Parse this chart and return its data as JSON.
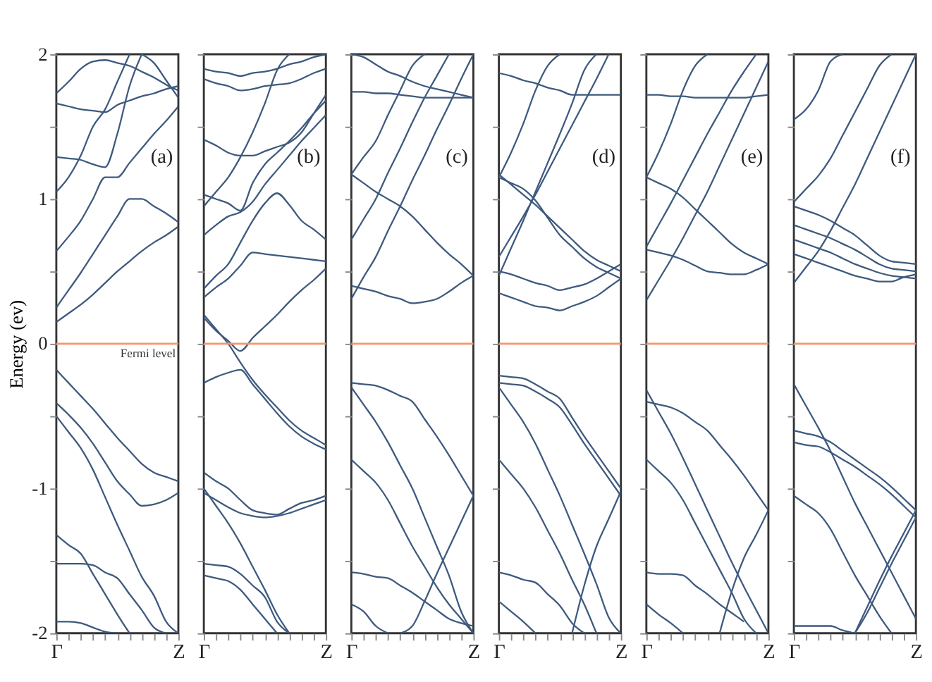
{
  "chart_data": [
    {
      "type": "line",
      "ylabel": "Energy (ev)",
      "categories": [
        "Γ",
        null,
        null,
        null,
        null,
        null,
        null,
        null,
        null,
        null,
        "Z"
      ],
      "ylim": [
        -2,
        2
      ],
      "yticks": [
        -2,
        {
          "value": -1.5,
          "label": null
        },
        -1,
        {
          "value": -0.5,
          "label": null
        },
        0,
        {
          "value": 0.5,
          "label": null
        },
        1,
        {
          "value": 1.5,
          "label": null
        },
        2
      ],
      "ref_lines": [
        {
          "axis": "y",
          "value": 0,
          "label": "Fermi level",
          "color": "#f5956a"
        }
      ],
      "annotations": [
        "(a)"
      ],
      "series": [
        {
          "color": "#3e5a7e",
          "values": [
            0.15,
            0.21,
            0.27,
            0.34,
            0.42,
            0.5,
            0.57,
            0.64,
            0.7,
            0.75,
            0.81
          ]
        },
        {
          "color": "#3e5a7e",
          "values": [
            0.25,
            0.37,
            0.49,
            0.62,
            0.75,
            0.88,
            1.0,
            1.0,
            0.95,
            0.9,
            0.84
          ]
        },
        {
          "color": "#3e5a7e",
          "values": [
            0.64,
            0.74,
            0.85,
            1,
            1.15,
            1.15,
            1.25,
            1.35,
            1.45,
            1.54,
            1.64
          ]
        },
        {
          "color": "#3e5a7e",
          "values": [
            1.05,
            1.15,
            1.3,
            1.5,
            1.62,
            1.81,
            2,
            null,
            null,
            null,
            null
          ]
        },
        {
          "color": "#3e5a7e",
          "values": [
            1.29,
            1.28,
            1.27,
            1.24,
            1.22,
            1.45,
            1.78,
            2,
            null,
            null,
            null
          ]
        },
        {
          "color": "#3e5a7e",
          "values": [
            1.73,
            1.81,
            1.9,
            1.95,
            1.96,
            1.94,
            1.92,
            1.88,
            1.84,
            1.79,
            1.75
          ]
        },
        {
          "color": "#3e5a7e",
          "values": [
            1.66,
            1.64,
            1.62,
            1.61,
            1.6,
            1.65,
            1.68,
            1.71,
            1.73,
            1.76,
            1.78
          ]
        },
        {
          "color": "#3e5a7e",
          "values": [
            null,
            null,
            null,
            null,
            null,
            null,
            null,
            2,
            1.94,
            1.82,
            1.7
          ]
        },
        {
          "color": "#3e5a7e",
          "values": [
            -0.18,
            -0.27,
            -0.36,
            -0.45,
            -0.55,
            -0.65,
            -0.74,
            -0.83,
            -0.89,
            -0.92,
            -0.95
          ]
        },
        {
          "color": "#3e5a7e",
          "values": [
            -0.41,
            -0.49,
            -0.58,
            -0.69,
            -0.82,
            -0.95,
            -1.04,
            -1.12,
            -1.11,
            -1.08,
            -1.03
          ]
        },
        {
          "color": "#3e5a7e",
          "values": [
            -0.5,
            -0.61,
            -0.72,
            -0.87,
            -1.06,
            -1.25,
            -1.43,
            -1.61,
            -1.74,
            -1.92,
            -2
          ]
        },
        {
          "color": "#3e5a7e",
          "values": [
            -1.32,
            -1.39,
            -1.45,
            -1.59,
            -1.73,
            -1.87,
            -2,
            null,
            null,
            null,
            null
          ]
        },
        {
          "color": "#3e5a7e",
          "values": [
            -1.52,
            -1.52,
            -1.52,
            -1.53,
            -1.58,
            -1.62,
            -1.73,
            -1.84,
            -1.96,
            -2,
            null
          ]
        },
        {
          "color": "#3e5a7e",
          "values": [
            -1.92,
            -1.92,
            -1.93,
            -1.96,
            -1.99,
            -2,
            null,
            null,
            null,
            null,
            null
          ]
        }
      ]
    },
    {
      "type": "line",
      "categories": [
        "Γ",
        null,
        null,
        null,
        null,
        null,
        null,
        null,
        null,
        null,
        "Z"
      ],
      "ylim": [
        -2,
        2
      ],
      "tick_labels": "x",
      "yticks": [
        {
          "value": -2,
          "label": null
        },
        {
          "value": -1.5,
          "label": null
        },
        {
          "value": -1,
          "label": null
        },
        {
          "value": -0.5,
          "label": null
        },
        {
          "value": 0,
          "label": null
        },
        {
          "value": 0.5,
          "label": null
        },
        {
          "value": 1,
          "label": null
        },
        {
          "value": 1.5,
          "label": null
        },
        {
          "value": 2,
          "label": null
        }
      ],
      "ref_lines": [
        {
          "axis": "y",
          "value": 0,
          "color": "#f5956a"
        }
      ],
      "annotations": [
        "(b)"
      ],
      "series": [
        {
          "color": "#3e5a7e",
          "values": [
            0.18,
            0.09,
            0.02,
            -0.05,
            0.04,
            0.12,
            0.2,
            0.29,
            0.37,
            0.44,
            0.52
          ]
        },
        {
          "color": "#3e5a7e",
          "values": [
            0.2,
            0.1,
            0,
            -0.13,
            -0.25,
            -0.35,
            -0.44,
            -0.53,
            -0.6,
            -0.65,
            -0.7
          ]
        },
        {
          "color": "#3e5a7e",
          "values": [
            -0.27,
            -0.23,
            -0.2,
            -0.18,
            -0.28,
            -0.38,
            -0.48,
            -0.57,
            -0.64,
            -0.69,
            -0.73
          ]
        },
        {
          "color": "#3e5a7e",
          "values": [
            0.32,
            0.39,
            0.45,
            0.54,
            0.63,
            0.62,
            0.61,
            0.6,
            0.59,
            0.58,
            0.57
          ]
        },
        {
          "color": "#3e5a7e",
          "values": [
            0.38,
            0.47,
            0.55,
            0.7,
            0.85,
            0.97,
            1.04,
            0.96,
            0.85,
            0.79,
            0.72
          ]
        },
        {
          "color": "#3e5a7e",
          "values": [
            0.75,
            0.82,
            0.88,
            0.91,
            0.98,
            1.1,
            1.2,
            1.3,
            1.4,
            1.49,
            1.58
          ]
        },
        {
          "color": "#3e5a7e",
          "values": [
            1.03,
            1,
            0.97,
            0.92,
            1.11,
            1.24,
            1.32,
            1.4,
            1.49,
            1.59,
            1.68
          ]
        },
        {
          "color": "#3e5a7e",
          "values": [
            1.41,
            1.37,
            1.32,
            1.3,
            1.3,
            1.33,
            1.36,
            1.39,
            1.46,
            1.59,
            1.72
          ]
        },
        {
          "color": "#3e5a7e",
          "values": [
            0.95,
            1.05,
            1.15,
            1.29,
            1.46,
            1.66,
            1.89,
            2,
            null,
            null,
            null
          ]
        },
        {
          "color": "#3e5a7e",
          "values": [
            1.9,
            1.88,
            1.87,
            1.85,
            1.87,
            1.88,
            1.9,
            1.93,
            1.95,
            1.98,
            2
          ]
        },
        {
          "color": "#3e5a7e",
          "values": [
            1.83,
            1.8,
            1.78,
            1.75,
            1.76,
            1.78,
            1.79,
            1.8,
            1.83,
            1.87,
            1.9
          ]
        },
        {
          "color": "#3e5a7e",
          "values": [
            -0.89,
            -0.95,
            -1,
            -1.08,
            -1.15,
            -1.17,
            -1.18,
            -1.14,
            -1.1,
            -1.08,
            -1.05
          ]
        },
        {
          "color": "#3e5a7e",
          "values": [
            -1.03,
            -1.08,
            -1.13,
            -1.17,
            -1.19,
            -1.2,
            -1.19,
            -1.17,
            -1.14,
            -1.11,
            -1.08
          ]
        },
        {
          "color": "#3e5a7e",
          "values": [
            -1,
            -1.12,
            -1.24,
            -1.38,
            -1.54,
            -1.7,
            -1.87,
            -2,
            null,
            null,
            null
          ]
        },
        {
          "color": "#3e5a7e",
          "values": [
            -1.52,
            -1.53,
            -1.54,
            -1.59,
            -1.67,
            -1.75,
            -1.92,
            -2,
            null,
            null,
            null
          ]
        },
        {
          "color": "#3e5a7e",
          "values": [
            -1.6,
            -1.62,
            -1.64,
            -1.7,
            -1.8,
            -1.9,
            -2,
            null,
            null,
            null,
            null
          ]
        }
      ]
    },
    {
      "type": "line",
      "categories": [
        "Γ",
        null,
        null,
        null,
        null,
        null,
        null,
        null,
        null,
        null,
        "Z"
      ],
      "ylim": [
        -2,
        2
      ],
      "tick_labels": "x",
      "yticks": [
        {
          "value": -2,
          "label": null
        },
        {
          "value": -1.5,
          "label": null
        },
        {
          "value": -1,
          "label": null
        },
        {
          "value": -0.5,
          "label": null
        },
        {
          "value": 0,
          "label": null
        },
        {
          "value": 0.5,
          "label": null
        },
        {
          "value": 1,
          "label": null
        },
        {
          "value": 1.5,
          "label": null
        },
        {
          "value": 2,
          "label": null
        }
      ],
      "ref_lines": [
        {
          "axis": "y",
          "value": 0,
          "color": "#f5956a"
        }
      ],
      "annotations": [
        "(c)"
      ],
      "series": [
        {
          "color": "#3e5a7e",
          "values": [
            0.4,
            0.38,
            0.36,
            0.33,
            0.31,
            0.28,
            0.29,
            0.31,
            0.36,
            0.42,
            0.47
          ]
        },
        {
          "color": "#3e5a7e",
          "values": [
            0.31,
            0.46,
            0.6,
            0.78,
            0.95,
            1.13,
            1.3,
            1.48,
            1.65,
            1.83,
            2
          ]
        },
        {
          "color": "#3e5a7e",
          "values": [
            0.72,
            0.86,
            1,
            1.18,
            1.35,
            1.53,
            1.7,
            1.85,
            2,
            null,
            null
          ]
        },
        {
          "color": "#3e5a7e",
          "values": [
            1.17,
            1.11,
            1.05,
            1,
            0.95,
            0.88,
            0.79,
            0.7,
            0.62,
            0.55,
            0.47
          ]
        },
        {
          "color": "#3e5a7e",
          "values": [
            1.17,
            1.29,
            1.4,
            1.58,
            1.75,
            1.92,
            2,
            null,
            null,
            null,
            null
          ]
        },
        {
          "color": "#3e5a7e",
          "values": [
            1.74,
            1.74,
            1.73,
            1.73,
            1.72,
            1.71,
            1.7,
            1.7,
            1.7,
            1.7,
            1.7
          ]
        },
        {
          "color": "#3e5a7e",
          "values": [
            2,
            1.98,
            1.93,
            1.88,
            1.85,
            1.81,
            1.78,
            1.76,
            1.74,
            1.72,
            1.7
          ]
        },
        {
          "color": "#3e5a7e",
          "values": [
            -0.27,
            -0.28,
            -0.29,
            -0.32,
            -0.36,
            -0.4,
            -0.52,
            -0.64,
            -0.77,
            -0.91,
            -1.05
          ]
        },
        {
          "color": "#3e5a7e",
          "values": [
            -0.3,
            -0.42,
            -0.54,
            -0.68,
            -0.84,
            -1,
            -1.2,
            -1.4,
            -1.6,
            -1.85,
            -2
          ]
        },
        {
          "color": "#3e5a7e",
          "values": [
            -0.8,
            -0.88,
            -0.96,
            -1.08,
            -1.24,
            -1.4,
            -1.54,
            -1.68,
            -1.8,
            -1.9,
            -2
          ]
        },
        {
          "color": "#3e5a7e",
          "values": [
            -1.58,
            -1.59,
            -1.61,
            -1.62,
            -1.67,
            -1.72,
            -1.78,
            -1.84,
            -1.9,
            -1.93,
            -1.95
          ]
        },
        {
          "color": "#3e5a7e",
          "values": [
            null,
            null,
            null,
            null,
            -2,
            -1.95,
            -1.78,
            -1.59,
            -1.41,
            -1.23,
            -1.05
          ]
        },
        {
          "color": "#3e5a7e",
          "values": [
            -1.8,
            -1.85,
            -1.95,
            -2,
            null,
            null,
            null,
            null,
            null,
            null,
            null
          ]
        }
      ]
    },
    {
      "type": "line",
      "categories": [
        "Γ",
        null,
        null,
        null,
        null,
        null,
        null,
        null,
        null,
        null,
        "Z"
      ],
      "ylim": [
        -2,
        2
      ],
      "tick_labels": "x",
      "yticks": [
        {
          "value": -2,
          "label": null
        },
        {
          "value": -1.5,
          "label": null
        },
        {
          "value": -1,
          "label": null
        },
        {
          "value": -0.5,
          "label": null
        },
        {
          "value": 0,
          "label": null
        },
        {
          "value": 0.5,
          "label": null
        },
        {
          "value": 1,
          "label": null
        },
        {
          "value": 1.5,
          "label": null
        },
        {
          "value": 2,
          "label": null
        }
      ],
      "ref_lines": [
        {
          "axis": "y",
          "value": 0,
          "color": "#f5956a"
        }
      ],
      "annotations": [
        "(d)"
      ],
      "series": [
        {
          "color": "#3e5a7e",
          "values": [
            0.35,
            0.32,
            0.29,
            0.26,
            0.25,
            0.23,
            0.26,
            0.29,
            0.33,
            0.39,
            0.45
          ]
        },
        {
          "color": "#3e5a7e",
          "values": [
            0.5,
            0.48,
            0.45,
            0.42,
            0.4,
            0.37,
            0.39,
            0.41,
            0.45,
            0.5,
            0.55
          ]
        },
        {
          "color": "#3e5a7e",
          "values": [
            0.6,
            0.74,
            0.88,
            1.03,
            1.19,
            1.35,
            1.51,
            1.67,
            1.83,
            2,
            null
          ]
        },
        {
          "color": "#3e5a7e",
          "values": [
            1.17,
            1.1,
            1.03,
            0.96,
            0.88,
            0.8,
            0.72,
            0.64,
            0.58,
            0.54,
            0.5
          ]
        },
        {
          "color": "#3e5a7e",
          "values": [
            1.15,
            1.11,
            1.07,
            0.99,
            0.87,
            0.75,
            0.67,
            0.59,
            0.53,
            0.49,
            0.45
          ]
        },
        {
          "color": "#3e5a7e",
          "values": [
            1.15,
            1.32,
            1.52,
            1.75,
            1.92,
            2,
            null,
            null,
            null,
            null,
            null
          ]
        },
        {
          "color": "#3e5a7e",
          "values": [
            1.87,
            1.85,
            1.82,
            1.8,
            1.77,
            1.75,
            1.72,
            1.72,
            1.72,
            1.72,
            1.72
          ]
        },
        {
          "color": "#3e5a7e",
          "values": [
            0.47,
            0.66,
            0.85,
            1.05,
            1.25,
            1.45,
            1.66,
            1.89,
            2,
            null,
            null
          ]
        },
        {
          "color": "#3e5a7e",
          "values": [
            -0.22,
            -0.23,
            -0.24,
            -0.28,
            -0.33,
            -0.38,
            -0.51,
            -0.64,
            -0.76,
            -0.88,
            -1
          ]
        },
        {
          "color": "#3e5a7e",
          "values": [
            -0.27,
            -0.28,
            -0.29,
            -0.33,
            -0.38,
            -0.44,
            -0.56,
            -0.69,
            -0.81,
            -0.93,
            -1.05
          ]
        },
        {
          "color": "#3e5a7e",
          "values": [
            -0.3,
            -0.42,
            -0.54,
            -0.69,
            -0.87,
            -1.05,
            -1.25,
            -1.45,
            -1.66,
            -1.89,
            -2
          ]
        },
        {
          "color": "#3e5a7e",
          "values": [
            -0.8,
            -0.9,
            -1,
            -1.13,
            -1.29,
            -1.45,
            -1.63,
            -1.8,
            -2,
            null,
            null
          ]
        },
        {
          "color": "#3e5a7e",
          "values": [
            null,
            null,
            null,
            null,
            null,
            null,
            -2,
            -1.67,
            -1.4,
            -1.21,
            -1.02
          ]
        },
        {
          "color": "#3e5a7e",
          "values": [
            -1.58,
            -1.6,
            -1.63,
            -1.65,
            -1.73,
            -1.81,
            -1.93,
            -2,
            null,
            null,
            null
          ]
        },
        {
          "color": "#3e5a7e",
          "values": [
            -1.78,
            -1.85,
            -1.92,
            -2,
            null,
            null,
            null,
            null,
            null,
            null,
            null
          ]
        }
      ]
    },
    {
      "type": "line",
      "categories": [
        "Γ",
        null,
        null,
        null,
        null,
        null,
        null,
        null,
        null,
        null,
        "Z"
      ],
      "ylim": [
        -2,
        2
      ],
      "tick_labels": "x",
      "yticks": [
        {
          "value": -2,
          "label": null
        },
        {
          "value": -1.5,
          "label": null
        },
        {
          "value": -1,
          "label": null
        },
        {
          "value": -0.5,
          "label": null
        },
        {
          "value": 0,
          "label": null
        },
        {
          "value": 0.5,
          "label": null
        },
        {
          "value": 1,
          "label": null
        },
        {
          "value": 1.5,
          "label": null
        },
        {
          "value": 2,
          "label": null
        }
      ],
      "ref_lines": [
        {
          "axis": "y",
          "value": 0,
          "color": "#f5956a"
        }
      ],
      "annotations": [
        "(e)"
      ],
      "series": [
        {
          "color": "#3e5a7e",
          "values": [
            0.65,
            0.63,
            0.61,
            0.58,
            0.54,
            0.5,
            0.49,
            0.48,
            0.48,
            0.51,
            0.55
          ]
        },
        {
          "color": "#3e5a7e",
          "values": [
            0.3,
            0.44,
            0.58,
            0.73,
            0.89,
            1.05,
            1.23,
            1.41,
            1.59,
            1.77,
            1.95
          ]
        },
        {
          "color": "#3e5a7e",
          "values": [
            0.67,
            0.82,
            0.97,
            1.13,
            1.29,
            1.45,
            1.6,
            1.75,
            1.88,
            2,
            null
          ]
        },
        {
          "color": "#3e5a7e",
          "values": [
            1.15,
            1.11,
            1.07,
            1.01,
            0.93,
            0.85,
            0.77,
            0.69,
            0.63,
            0.59,
            0.55
          ]
        },
        {
          "color": "#3e5a7e",
          "values": [
            1.15,
            1.32,
            1.52,
            1.75,
            1.92,
            2,
            null,
            null,
            null,
            null,
            null
          ]
        },
        {
          "color": "#3e5a7e",
          "values": [
            1.72,
            1.72,
            1.71,
            1.71,
            1.7,
            1.7,
            1.7,
            1.7,
            1.7,
            1.71,
            1.72
          ]
        },
        {
          "color": "#3e5a7e",
          "values": [
            -0.4,
            -0.42,
            -0.44,
            -0.48,
            -0.54,
            -0.6,
            -0.7,
            -0.8,
            -0.91,
            -1.03,
            -1.15
          ]
        },
        {
          "color": "#3e5a7e",
          "values": [
            -0.32,
            -0.47,
            -0.62,
            -0.79,
            -0.97,
            -1.15,
            -1.33,
            -1.51,
            -1.68,
            -1.84,
            -2
          ]
        },
        {
          "color": "#3e5a7e",
          "values": [
            -0.8,
            -0.88,
            -0.96,
            -1.08,
            -1.24,
            -1.4,
            -1.56,
            -1.72,
            -1.9,
            -2,
            null
          ]
        },
        {
          "color": "#3e5a7e",
          "values": [
            -1.58,
            -1.59,
            -1.59,
            -1.6,
            -1.67,
            -1.73,
            -1.8,
            -1.86,
            -1.92,
            null,
            null
          ]
        },
        {
          "color": "#3e5a7e",
          "values": [
            null,
            null,
            null,
            null,
            null,
            null,
            -2,
            -1.71,
            -1.48,
            -1.32,
            -1.15
          ]
        },
        {
          "color": "#3e5a7e",
          "values": [
            -1.8,
            -1.87,
            -1.93,
            -2,
            null,
            null,
            null,
            null,
            null,
            null,
            null
          ]
        }
      ]
    },
    {
      "type": "line",
      "categories": [
        "Γ",
        null,
        null,
        null,
        null,
        null,
        null,
        null,
        null,
        null,
        "Z"
      ],
      "ylim": [
        -2,
        2
      ],
      "tick_labels": "x",
      "yticks": [
        {
          "value": -2,
          "label": null
        },
        {
          "value": -1.5,
          "label": null
        },
        {
          "value": -1,
          "label": null
        },
        {
          "value": -0.5,
          "label": null
        },
        {
          "value": 0,
          "label": null
        },
        {
          "value": 0.5,
          "label": null
        },
        {
          "value": 1,
          "label": null
        },
        {
          "value": 1.5,
          "label": null
        },
        {
          "value": 2,
          "label": null
        }
      ],
      "ref_lines": [
        {
          "axis": "y",
          "value": 0,
          "color": "#f5956a"
        }
      ],
      "annotations": [
        "(f)"
      ],
      "series": [
        {
          "color": "#3e5a7e",
          "values": [
            0.42,
            0.53,
            0.64,
            0.78,
            0.94,
            1.1,
            1.28,
            1.46,
            1.64,
            1.82,
            2
          ]
        },
        {
          "color": "#3e5a7e",
          "values": [
            0.62,
            0.59,
            0.56,
            0.53,
            0.5,
            0.47,
            0.45,
            0.43,
            0.43,
            0.46,
            0.48
          ]
        },
        {
          "color": "#3e5a7e",
          "values": [
            0.72,
            0.69,
            0.66,
            0.63,
            0.59,
            0.55,
            0.52,
            0.49,
            0.47,
            0.46,
            0.45
          ]
        },
        {
          "color": "#3e5a7e",
          "values": [
            0.82,
            0.79,
            0.76,
            0.73,
            0.69,
            0.65,
            0.6,
            0.55,
            0.52,
            0.51,
            0.5
          ]
        },
        {
          "color": "#3e5a7e",
          "values": [
            0.95,
            0.92,
            0.89,
            0.85,
            0.8,
            0.75,
            0.68,
            0.61,
            0.57,
            0.56,
            0.55
          ]
        },
        {
          "color": "#3e5a7e",
          "values": [
            0.98,
            1.07,
            1.16,
            1.28,
            1.44,
            1.6,
            1.76,
            1.92,
            2,
            null,
            null
          ]
        },
        {
          "color": "#3e5a7e",
          "values": [
            1.55,
            1.62,
            1.75,
            1.95,
            2,
            null,
            null,
            null,
            null,
            null,
            null
          ]
        },
        {
          "color": "#3e5a7e",
          "values": [
            -0.28,
            -0.43,
            -0.58,
            -0.74,
            -0.92,
            -1.1,
            -1.26,
            -1.42,
            -1.58,
            -1.74,
            -1.9
          ]
        },
        {
          "color": "#3e5a7e",
          "values": [
            -0.6,
            -0.62,
            -0.64,
            -0.68,
            -0.74,
            -0.8,
            -0.86,
            -0.92,
            -0.99,
            -1.07,
            -1.15
          ]
        },
        {
          "color": "#3e5a7e",
          "values": [
            -0.68,
            -0.7,
            -0.71,
            -0.75,
            -0.8,
            -0.85,
            -0.91,
            -0.97,
            -1.04,
            -1.12,
            -1.2
          ]
        },
        {
          "color": "#3e5a7e",
          "values": [
            -1.05,
            -1.11,
            -1.17,
            -1.28,
            -1.44,
            -1.6,
            -1.74,
            -1.88,
            -2,
            null,
            null
          ]
        },
        {
          "color": "#3e5a7e",
          "values": [
            null,
            null,
            null,
            null,
            null,
            -2,
            -1.82,
            -1.64,
            -1.47,
            -1.31,
            -1.15
          ]
        },
        {
          "color": "#3e5a7e",
          "values": [
            null,
            null,
            null,
            null,
            null,
            -2,
            -1.86,
            -1.69,
            -1.52,
            -1.36,
            -1.2
          ]
        },
        {
          "color": "#3e5a7e",
          "values": [
            -1.95,
            -1.95,
            -1.95,
            -1.95,
            -1.98,
            -2,
            null,
            null,
            null,
            null,
            null
          ]
        }
      ]
    }
  ]
}
